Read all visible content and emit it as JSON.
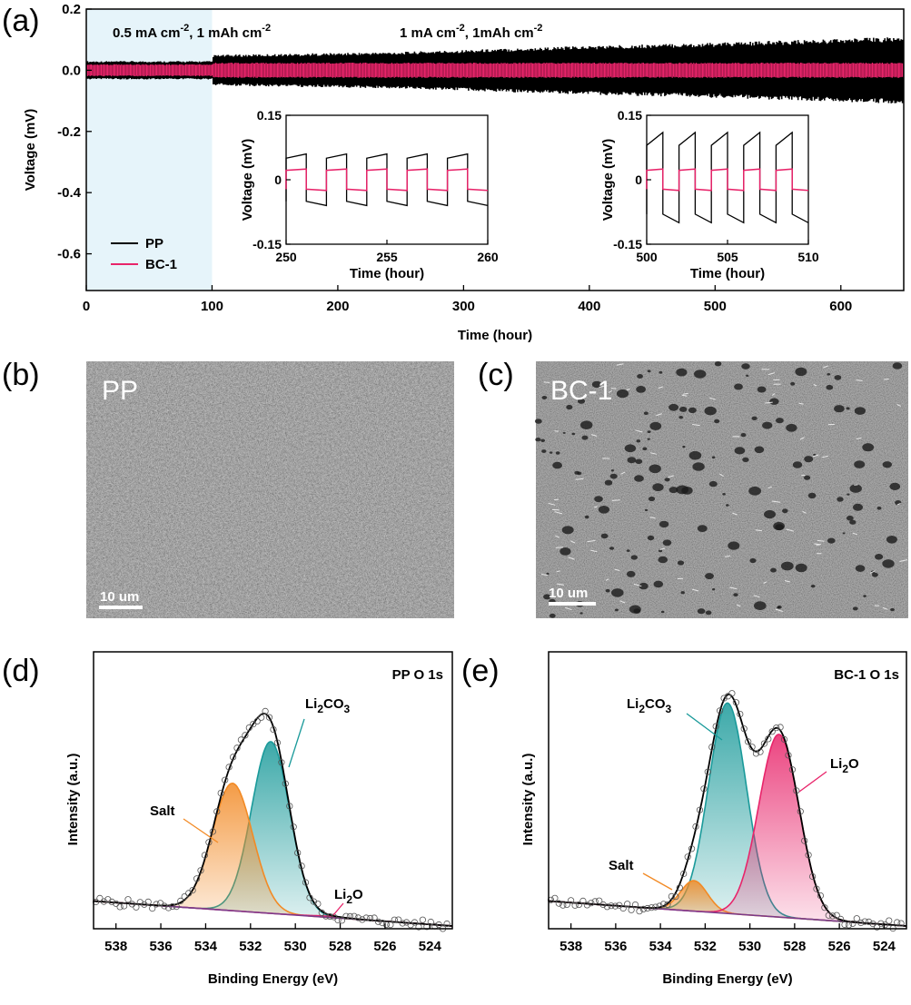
{
  "panels": [
    {
      "letter": "(a)"
    },
    {
      "letter": "(b)",
      "image_label": "PP",
      "scale_bar": "10 um"
    },
    {
      "letter": "(c)",
      "image_label": "BC-1",
      "scale_bar": "10 um"
    },
    {
      "letter": "(d)"
    },
    {
      "letter": "(e)"
    }
  ],
  "colors": {
    "PP": "#000000",
    "BC1": "#e8246a",
    "shade": "#e6f4fa",
    "Li2CO3": "#1a9a9a",
    "Salt": "#f28a25",
    "Li2O": "#e8246a",
    "baseline": "#7a3a8a"
  },
  "chart_data": [
    {
      "id": "a",
      "type": "line",
      "xlabel": "Time (hour)",
      "ylabel": "Voltage (mV)",
      "xlim": [
        0,
        650
      ],
      "ylim": [
        -0.72,
        0.2
      ],
      "xticks": [
        0,
        100,
        200,
        300,
        400,
        500,
        600
      ],
      "yticks": [
        "0.2",
        "0.0",
        "-0.2",
        "-0.4",
        "-0.6"
      ],
      "yticks_values": [
        0.2,
        0.0,
        -0.2,
        -0.4,
        -0.6
      ],
      "annotations": [
        {
          "text": "0.5 mA cm",
          "sup": "-2",
          "text2": ", 1 mAh cm",
          "sup2": "-2"
        },
        {
          "text": "1 mA cm",
          "sup": "-2",
          "text2": ", 1mAh cm",
          "sup2": "-2"
        }
      ],
      "shaded_region": [
        0,
        100
      ],
      "legend_position": "bottom-left",
      "series": [
        {
          "name": "PP",
          "envelope_x": [
            0,
            100,
            101,
            250,
            400,
            500,
            650
          ],
          "upper": [
            0.03,
            0.03,
            0.05,
            0.06,
            0.08,
            0.09,
            0.11
          ],
          "lower": [
            -0.03,
            -0.03,
            -0.05,
            -0.06,
            -0.08,
            -0.09,
            -0.11
          ]
        },
        {
          "name": "BC-1",
          "envelope_x": [
            0,
            100,
            101,
            650
          ],
          "upper": [
            0.02,
            0.02,
            0.025,
            0.025
          ],
          "lower": [
            -0.02,
            -0.02,
            -0.025,
            -0.025
          ]
        }
      ],
      "insets": [
        {
          "xlabel": "Time (hour)",
          "ylabel": "Voltage (mV)",
          "xlim": [
            250,
            260
          ],
          "ylim": [
            -0.15,
            0.15
          ],
          "xticks": [
            250,
            255,
            260
          ],
          "yticks": [
            "0.15",
            "0",
            "-0.15"
          ],
          "yticks_values": [
            0.15,
            0,
            -0.15
          ],
          "period": 2,
          "x_start": 250,
          "PP_pos": [
            0.05,
            0.06
          ],
          "PP_neg": [
            -0.05,
            -0.06
          ],
          "BC1_pos": [
            0.022,
            0.025
          ],
          "BC1_neg": [
            -0.022,
            -0.025
          ]
        },
        {
          "xlabel": "Time (hour)",
          "ylabel": "Voltage (mV)",
          "xlim": [
            500,
            510
          ],
          "ylim": [
            -0.15,
            0.15
          ],
          "xticks": [
            500,
            505,
            510
          ],
          "yticks": [
            "0.15",
            "0",
            "-0.15"
          ],
          "yticks_values": [
            0.15,
            0,
            -0.15
          ],
          "period": 2,
          "x_start": 500,
          "PP_pos": [
            0.08,
            0.11
          ],
          "PP_neg": [
            -0.08,
            -0.1
          ],
          "BC1_pos": [
            0.022,
            0.025
          ],
          "BC1_neg": [
            -0.022,
            -0.025
          ]
        }
      ]
    },
    {
      "id": "d",
      "type": "area",
      "title": "PP O 1s",
      "xlabel": "Binding Energy (eV)",
      "ylabel": "Intensity (a.u.)",
      "xlim": [
        539,
        523
      ],
      "xticks": [
        538,
        536,
        534,
        532,
        530,
        528,
        526,
        524
      ],
      "ylim": [
        0,
        1.0
      ],
      "baseline": {
        "x": [
          539,
          523
        ],
        "y": [
          0.1,
          0.01
        ]
      },
      "peaks": [
        {
          "name": "Li",
          "sub": "2",
          "name2": "CO",
          "sub2": "3",
          "center": 531.1,
          "height": 0.62,
          "width": 0.85
        },
        {
          "name": "Salt",
          "sub": "",
          "name2": "",
          "sub2": "",
          "center": 532.8,
          "height": 0.46,
          "width": 0.9
        },
        {
          "name": "Li",
          "sub": "2",
          "name2": "O",
          "sub2": "",
          "center": 528.5,
          "height": 0.004,
          "width": 0.8
        }
      ]
    },
    {
      "id": "e",
      "type": "area",
      "title": "BC-1 O 1s",
      "xlabel": "Binding Energy (eV)",
      "ylabel": "Intensity (a.u.)",
      "xlim": [
        539,
        523
      ],
      "xticks": [
        538,
        536,
        534,
        532,
        530,
        528,
        526,
        524
      ],
      "ylim": [
        0,
        1.0
      ],
      "baseline": {
        "x": [
          539,
          523
        ],
        "y": [
          0.1,
          0.01
        ]
      },
      "peaks": [
        {
          "name": "Li",
          "sub": "2",
          "name2": "CO",
          "sub2": "3",
          "center": 531.0,
          "height": 0.76,
          "width": 0.85
        },
        {
          "name": "Salt",
          "sub": "",
          "name2": "",
          "sub2": "",
          "center": 532.5,
          "height": 0.11,
          "width": 0.6
        },
        {
          "name": "Li",
          "sub": "2",
          "name2": "O",
          "sub2": "",
          "center": 528.7,
          "height": 0.66,
          "width": 0.9
        }
      ]
    }
  ]
}
